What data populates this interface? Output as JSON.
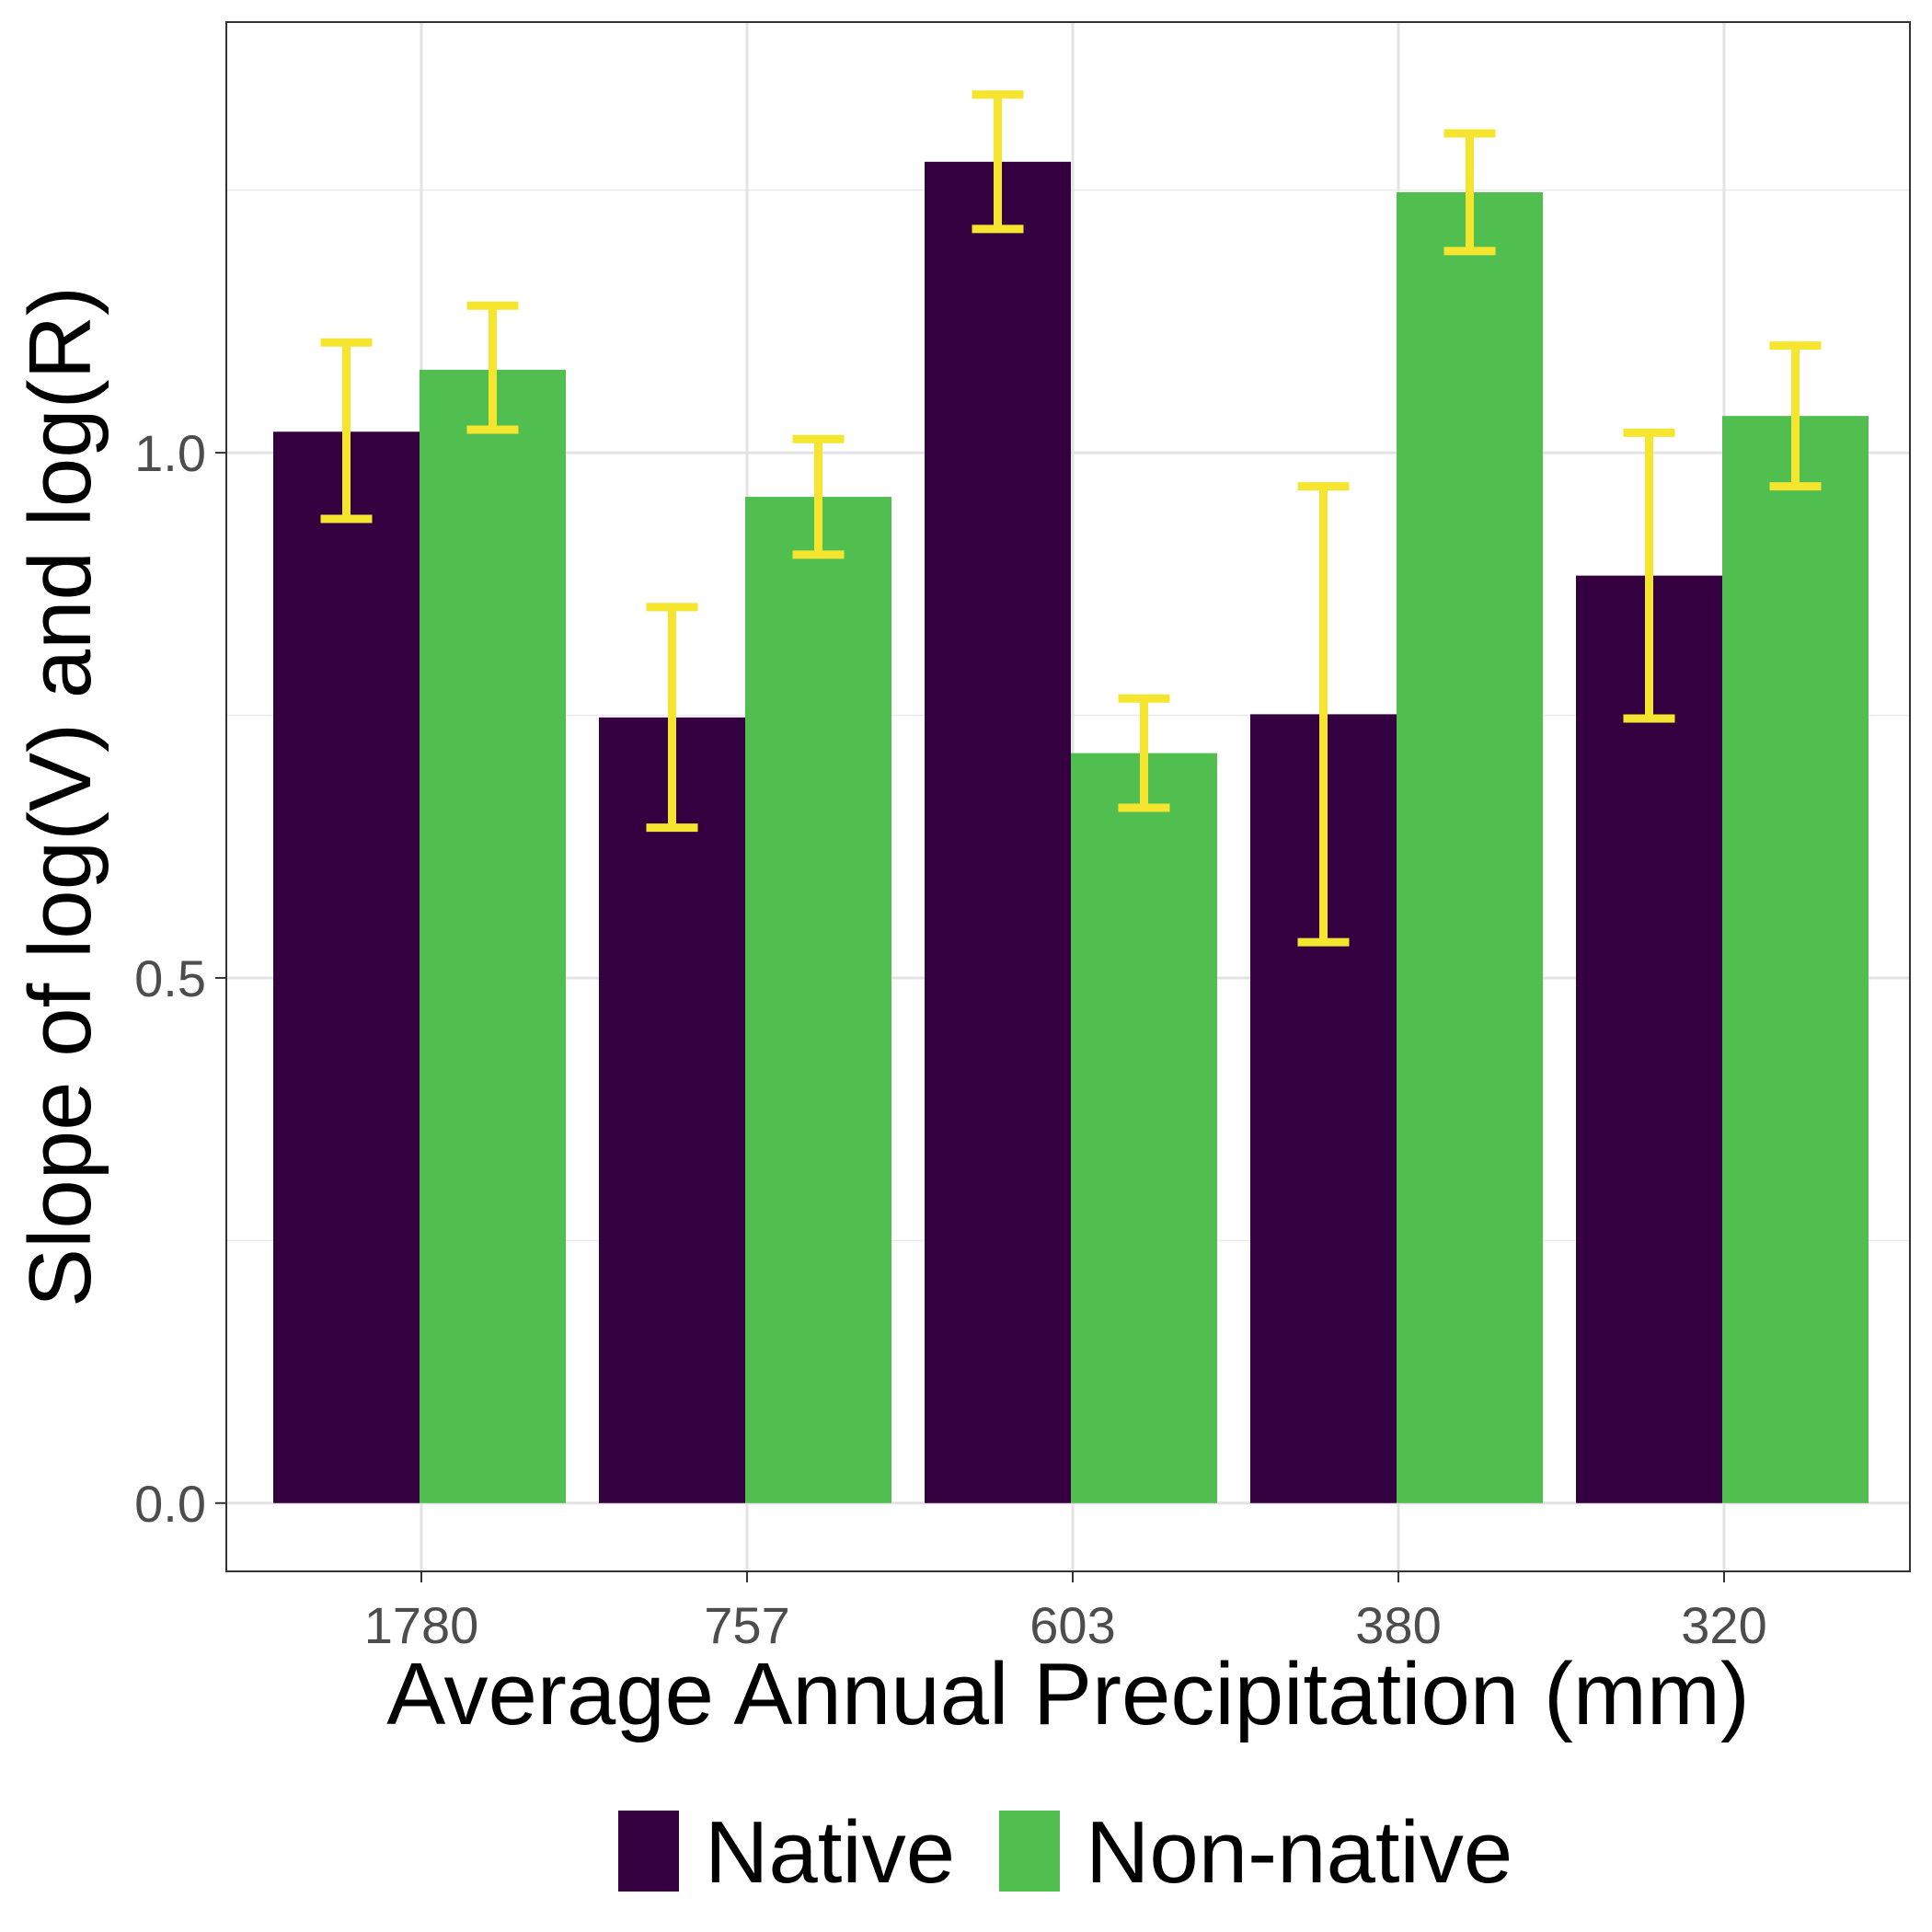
{
  "chart_data": {
    "type": "bar",
    "title": "",
    "xlabel": "Average Annual Precipitation (mm)",
    "ylabel": "Slope of log(V) and log(R)",
    "categories": [
      "1780",
      "757",
      "603",
      "380",
      "320"
    ],
    "series": [
      {
        "name": "Native",
        "color": "#35003f",
        "values": [
          1.02,
          0.748,
          1.277,
          0.751,
          0.883
        ],
        "error_low": [
          0.937,
          0.643,
          1.213,
          0.534,
          0.747
        ],
        "error_high": [
          1.105,
          0.853,
          1.341,
          0.968,
          1.019
        ]
      },
      {
        "name": "Non-native",
        "color": "#51bf50",
        "values": [
          1.079,
          0.958,
          0.714,
          1.248,
          1.035
        ],
        "error_low": [
          1.022,
          0.903,
          0.662,
          1.192,
          0.968
        ],
        "error_high": [
          1.14,
          1.013,
          0.766,
          1.304,
          1.102
        ]
      }
    ],
    "errorbar_color": "#f5e52f",
    "ylim": [
      -0.065,
      1.41
    ],
    "yticks": [
      0.0,
      0.5,
      1.0
    ],
    "ytick_labels": [
      "0.0",
      "0.5",
      "1.0"
    ],
    "grid": true,
    "legend_position": "bottom"
  }
}
